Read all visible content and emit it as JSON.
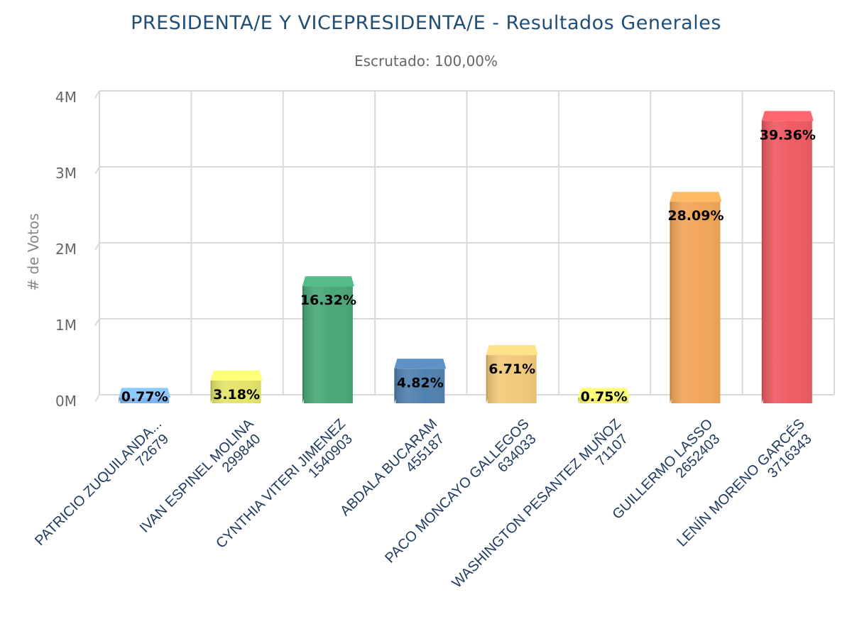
{
  "chart_data": {
    "type": "bar",
    "title": "PRESIDENTA/E Y VICEPRESIDENTA/E - Resultados Generales",
    "subtitle": "Escrutado: 100,00%",
    "ylabel": "# de Votos",
    "xlabel": "",
    "ylim": [
      0,
      4000000
    ],
    "yticks": [
      {
        "value": 0,
        "label": "0M"
      },
      {
        "value": 1000000,
        "label": "1M"
      },
      {
        "value": 2000000,
        "label": "2M"
      },
      {
        "value": 3000000,
        "label": "3M"
      },
      {
        "value": 4000000,
        "label": "4M"
      }
    ],
    "grid": true,
    "categories": [
      {
        "name": "PATRICIO ZUQUILANDA...",
        "votes_label": "72679",
        "value": 72679,
        "percent": "0.77%",
        "color": "#7cb5ec"
      },
      {
        "name": "IVAN ESPINEL MOLINA",
        "votes_label": "299840",
        "value": 299840,
        "percent": "3.18%",
        "color": "#e4e46a"
      },
      {
        "name": "CYNTHIA VITERI JIMENEZ",
        "votes_label": "1540903",
        "value": 1540903,
        "percent": "16.32%",
        "color": "#4ba87a"
      },
      {
        "name": "ABDALA BUCARAM",
        "votes_label": "455187",
        "value": 455187,
        "percent": "4.82%",
        "color": "#5282b0"
      },
      {
        "name": "PACO MONCAYO GALLEGOS",
        "votes_label": "634033",
        "value": 634033,
        "percent": "6.71%",
        "color": "#f2c97a"
      },
      {
        "name": "WASHINGTON PESANTEZ MUÑOZ",
        "votes_label": "71107",
        "value": 71107,
        "percent": "0.75%",
        "color": "#f7f26a"
      },
      {
        "name": "GUILLERMO LASSO",
        "votes_label": "2652403",
        "value": 2652403,
        "percent": "28.09%",
        "color": "#f2a65a"
      },
      {
        "name": "LENÍN MORENO GARCÉS",
        "votes_label": "3716343",
        "value": 3716343,
        "percent": "39.36%",
        "color": "#ef5b63"
      }
    ]
  }
}
